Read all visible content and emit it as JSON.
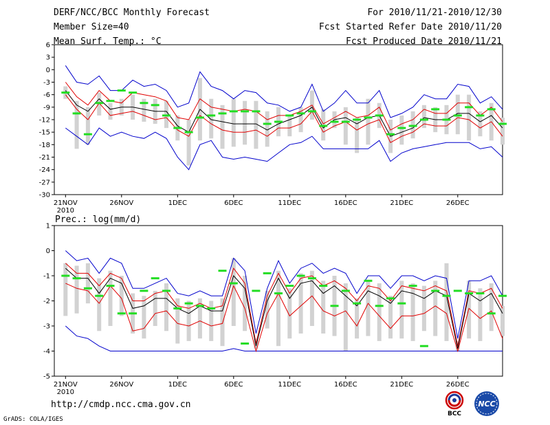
{
  "header": {
    "title": "DERF/NCC/BCC Monthly Forecast",
    "member_size": "Member Size=40",
    "variable": "Mean Surf. Temp.: °C",
    "period": "For 2010/11/21-2010/12/30",
    "started": "Fcst Started Refer Date 2010/11/20",
    "produced": "Fcst Produced Date 2010/11/21"
  },
  "footer": {
    "url": "http://cmdp.ncc.cma.gov.cn",
    "grads": "GrADS: COLA/IGES",
    "bcc_logo_text": "BCC",
    "ncc_logo_text": "NCC"
  },
  "colors": {
    "box": "#d2d2d2",
    "mean": "#000000",
    "spread": "#e00000",
    "envelope": "#0000cc",
    "observed": "#22dd22"
  },
  "chart_data": [
    {
      "type": "line",
      "title": "Mean Surf. Temp.: °C",
      "ylabel": "°C",
      "ylim": [
        -30,
        6
      ],
      "yticks": [
        6,
        3,
        0,
        -3,
        -6,
        -9,
        -12,
        -15,
        -18,
        -21,
        -24,
        -27,
        -30
      ],
      "day_range": [
        0,
        40
      ],
      "xtick_days": [
        1,
        6,
        11,
        16,
        21,
        26,
        31,
        36
      ],
      "xtick_labels": [
        "21NOV",
        "26NOV",
        "1DEC",
        "6DEC",
        "11DEC",
        "16DEC",
        "21DEC",
        "26DEC"
      ],
      "x_year_label": "2010",
      "days": [
        1,
        2,
        3,
        4,
        5,
        6,
        7,
        8,
        9,
        10,
        11,
        12,
        13,
        14,
        15,
        16,
        17,
        18,
        19,
        20,
        21,
        22,
        23,
        24,
        25,
        26,
        27,
        28,
        29,
        30,
        31,
        32,
        33,
        34,
        35,
        36,
        37,
        38,
        39,
        40
      ],
      "series": [
        {
          "name": "max",
          "values": [
            1,
            -3,
            -3.5,
            -1.5,
            -5,
            -5,
            -2.5,
            -4,
            -3.5,
            -5,
            -9,
            -8,
            -0.5,
            -4,
            -5,
            -7,
            -5,
            -5.5,
            -8,
            -8.5,
            -10,
            -9,
            -3.5,
            -10,
            -8,
            -5,
            -8,
            -8,
            -5,
            -11.5,
            -10.5,
            -9,
            -6,
            -7,
            -7,
            -3.5,
            -4,
            -8,
            -6.5,
            -9.5
          ]
        },
        {
          "name": "upper",
          "values": [
            -3,
            -6.5,
            -8.5,
            -5,
            -7.5,
            -8,
            -5.5,
            -6,
            -6.5,
            -7.5,
            -11.5,
            -12,
            -7,
            -9,
            -9.5,
            -10,
            -9.5,
            -10,
            -12,
            -11,
            -11,
            -10,
            -8.5,
            -13,
            -11.5,
            -10,
            -11.5,
            -11,
            -9,
            -14.5,
            -13,
            -12,
            -9.5,
            -10.5,
            -10.5,
            -8,
            -8,
            -11,
            -9,
            -12.5
          ]
        },
        {
          "name": "mean",
          "values": [
            -5,
            -8.5,
            -10,
            -7,
            -9.5,
            -9,
            -9,
            -9.5,
            -10,
            -10,
            -13.5,
            -15,
            -9.5,
            -12,
            -12.5,
            -13,
            -13,
            -13,
            -14.5,
            -13,
            -12,
            -11,
            -9,
            -14,
            -12,
            -11.5,
            -13,
            -11.5,
            -11,
            -16,
            -15,
            -14,
            -11.5,
            -12,
            -12,
            -10.5,
            -10.5,
            -12.5,
            -11,
            -14
          ]
        },
        {
          "name": "lower",
          "values": [
            -6,
            -9.5,
            -12,
            -8,
            -11,
            -10.5,
            -10,
            -11,
            -12,
            -11.5,
            -14.5,
            -16,
            -11,
            -13,
            -14.5,
            -15,
            -15,
            -14.5,
            -16,
            -14,
            -14,
            -13,
            -10,
            -15,
            -13.5,
            -12.5,
            -14.5,
            -13,
            -12,
            -17.5,
            -16,
            -15,
            -13,
            -13.5,
            -13.5,
            -11.5,
            -12,
            -14,
            -12.5,
            -16
          ]
        },
        {
          "name": "min",
          "values": [
            -14,
            -16,
            -18,
            -14,
            -16,
            -15,
            -16,
            -16.5,
            -15,
            -16.5,
            -21,
            -24,
            -18,
            -17,
            -21,
            -21.5,
            -21,
            -21.5,
            -22,
            -20,
            -18,
            -17.5,
            -16,
            -19,
            -19,
            -19,
            -19,
            -19,
            -17,
            -22,
            -20,
            -19,
            -18.5,
            -18,
            -17.5,
            -17.5,
            -17.5,
            -19,
            -18.5,
            -21
          ]
        },
        {
          "name": "box_top",
          "values": [
            -4,
            -7.5,
            -9,
            -5.5,
            -8,
            -7,
            -6,
            -7,
            -7,
            -7.5,
            -11,
            -12,
            -2,
            -7,
            -8.5,
            -7,
            -7.5,
            -7.5,
            -10,
            -9,
            -11,
            -9,
            -5,
            -9.5,
            -10,
            -9,
            -11.5,
            -7,
            -8,
            -12,
            -11,
            -10,
            -8.5,
            -9,
            -8.5,
            -6,
            -6,
            -10,
            -8,
            -11.5
          ]
        },
        {
          "name": "box_bottom",
          "values": [
            -7,
            -19,
            -18,
            -11,
            -12,
            -11,
            -12,
            -12.5,
            -13,
            -14,
            -17,
            -23,
            -17,
            -16.5,
            -19,
            -18.5,
            -18,
            -19,
            -18.5,
            -16,
            -16,
            -15,
            -12,
            -17,
            -14,
            -18,
            -20,
            -18,
            -14,
            -20,
            -18,
            -16.5,
            -14,
            -15,
            -15.5,
            -15.5,
            -17,
            -16,
            -17,
            -18
          ]
        },
        {
          "name": "observed",
          "values": [
            -5.5,
            -10.5,
            -15.5,
            -8,
            -7.5,
            -5,
            -5.5,
            -8,
            -8.5,
            -11,
            -14,
            -15,
            -11.5,
            -11,
            -10.5,
            -10,
            -10,
            -10,
            -13,
            -12.5,
            -11,
            -10.5,
            -10,
            -13.5,
            -12.5,
            -12.5,
            -12,
            -11.5,
            -11,
            -15.5,
            -14,
            -13.5,
            -12,
            -9.5,
            -12,
            -11,
            -9,
            -11,
            -9.5,
            -13
          ]
        }
      ]
    },
    {
      "type": "line",
      "title": "Prec.: log(mm/d)",
      "ylabel": "log(mm/d)",
      "ylim": [
        -5,
        1
      ],
      "yticks": [
        1,
        0,
        -1,
        -2,
        -3,
        -4,
        -5
      ],
      "day_range": [
        0,
        40
      ],
      "xtick_days": [
        1,
        6,
        11,
        16,
        21,
        26,
        31,
        36
      ],
      "xtick_labels": [
        "21NOV",
        "26NOV",
        "1DEC",
        "6DEC",
        "11DEC",
        "16DEC",
        "21DEC",
        "26DEC"
      ],
      "x_year_label": "2010",
      "days": [
        1,
        2,
        3,
        4,
        5,
        6,
        7,
        8,
        9,
        10,
        11,
        12,
        13,
        14,
        15,
        16,
        17,
        18,
        19,
        20,
        21,
        22,
        23,
        24,
        25,
        26,
        27,
        28,
        29,
        30,
        31,
        32,
        33,
        34,
        35,
        36,
        37,
        38,
        39,
        40
      ],
      "series": [
        {
          "name": "max",
          "values": [
            0,
            -0.4,
            -0.3,
            -0.9,
            -0.3,
            -0.5,
            -1.5,
            -1.5,
            -1.3,
            -1.1,
            -1.7,
            -1.8,
            -1.6,
            -1.8,
            -1.8,
            -0.3,
            -0.8,
            -3.3,
            -1.5,
            -0.4,
            -1.3,
            -0.7,
            -0.5,
            -0.9,
            -0.7,
            -0.9,
            -1.7,
            -1,
            -1,
            -1.5,
            -1,
            -1,
            -1.2,
            -1,
            -1.1,
            -3.5,
            -1.2,
            -1.2,
            -1,
            -1.8
          ]
        },
        {
          "name": "upper",
          "values": [
            -0.5,
            -0.9,
            -0.9,
            -1.4,
            -0.9,
            -1.1,
            -2,
            -2,
            -1.7,
            -1.6,
            -2.2,
            -2.3,
            -2.1,
            -2.3,
            -2.2,
            -0.7,
            -1.3,
            -3.7,
            -1.8,
            -0.9,
            -1.7,
            -1.1,
            -1,
            -1.4,
            -1.2,
            -1.5,
            -2,
            -1.4,
            -1.5,
            -2,
            -1.4,
            -1.5,
            -1.6,
            -1.4,
            -1.6,
            -3.8,
            -1.6,
            -1.7,
            -1.5,
            -2.3
          ]
        },
        {
          "name": "mean",
          "values": [
            -0.7,
            -1.1,
            -1.1,
            -1.7,
            -1.1,
            -1.3,
            -2.3,
            -2.2,
            -1.9,
            -1.9,
            -2.3,
            -2.5,
            -2.2,
            -2.4,
            -2.4,
            -1,
            -1.5,
            -3.8,
            -2,
            -1.1,
            -1.9,
            -1.3,
            -1.2,
            -1.7,
            -1.4,
            -1.8,
            -2.2,
            -1.6,
            -1.8,
            -2.1,
            -1.6,
            -1.7,
            -1.9,
            -1.6,
            -1.8,
            -3.9,
            -1.7,
            -2,
            -1.7,
            -2.5
          ]
        },
        {
          "name": "lower",
          "values": [
            -1.3,
            -1.5,
            -1.6,
            -2.1,
            -1.4,
            -1.9,
            -3.2,
            -3.1,
            -2.5,
            -2.4,
            -2.9,
            -3,
            -2.8,
            -3,
            -2.9,
            -1.4,
            -2.3,
            -4,
            -2.5,
            -1.7,
            -2.6,
            -2.2,
            -1.8,
            -2.4,
            -2.6,
            -2.4,
            -3,
            -2.1,
            -2.6,
            -3.1,
            -2.6,
            -2.6,
            -2.5,
            -2.2,
            -2.5,
            -4,
            -2.3,
            -2.7,
            -2.4,
            -3.5
          ]
        },
        {
          "name": "min",
          "values": [
            -3,
            -3.4,
            -3.5,
            -3.8,
            -4,
            -4,
            -4,
            -4,
            -4,
            -4,
            -4,
            -4,
            -4,
            -4,
            -4,
            -3.9,
            -4,
            -4,
            -4,
            -4,
            -4,
            -4,
            -4,
            -4,
            -4,
            -4,
            -4,
            -4,
            -4,
            -4,
            -4,
            -4,
            -4,
            -4,
            -4,
            -4,
            -4,
            -4,
            -4,
            -4
          ]
        },
        {
          "name": "box_top",
          "values": [
            -0.5,
            -0.6,
            -0.5,
            -1.1,
            -0.8,
            -1,
            -1.7,
            -1.8,
            -1.6,
            -1.3,
            -1.9,
            -2,
            -1.9,
            -2,
            -1.9,
            -0.3,
            -1,
            -3.5,
            -1.6,
            -0.8,
            -1.5,
            -0.9,
            -0.8,
            -1.2,
            -1,
            -1.3,
            -1.9,
            -1.2,
            -1.3,
            -1.8,
            -1.2,
            -1.3,
            -1.4,
            -1.2,
            -0.5,
            -3.6,
            -1.2,
            -1.5,
            -1.3,
            -2.2
          ]
        },
        {
          "name": "box_bottom",
          "values": [
            -2.6,
            -2.5,
            -2.1,
            -3.2,
            -3,
            -2.6,
            -3.3,
            -3.5,
            -3,
            -3.2,
            -3.7,
            -3.6,
            -3.5,
            -3.6,
            -3.8,
            -3,
            -3.2,
            -3.9,
            -3.1,
            -3.8,
            -3.5,
            -3.3,
            -3,
            -3.3,
            -3.4,
            -4,
            -3.5,
            -3.4,
            -3.6,
            -3.5,
            -3.5,
            -3.6,
            -3.2,
            -3.4,
            -3.6,
            -4,
            -3.5,
            -3.6,
            -3.2,
            -3.4
          ]
        },
        {
          "name": "observed",
          "values": [
            -1,
            -1.1,
            -1.5,
            -1.8,
            -1.4,
            -2.5,
            -2.5,
            -1.6,
            -1.1,
            -1.6,
            -2.3,
            -2.1,
            -2.2,
            -2.3,
            -0.8,
            -1.3,
            -3.7,
            -1.6,
            -0.9,
            -1.7,
            -1.4,
            -1,
            -1.1,
            -1.4,
            -2.2,
            -1.6,
            -2.1,
            -1.2,
            -2.2,
            -1.9,
            -2.1,
            -1.4,
            -3.8,
            -1.6,
            -1.8,
            -1.6,
            -1.7,
            -1.7,
            -2.5,
            -1.8
          ]
        }
      ]
    }
  ]
}
